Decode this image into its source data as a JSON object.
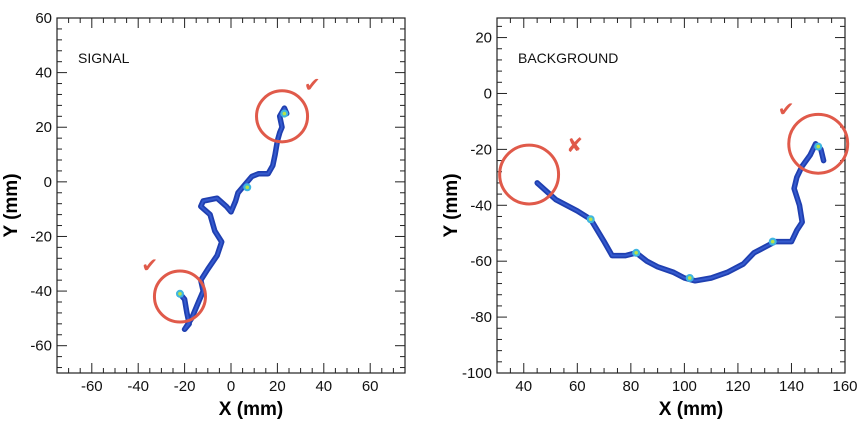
{
  "chart_data": [
    {
      "type": "scatter",
      "label": "SIGNAL",
      "xlabel": "X (mm)",
      "ylabel": "Y (mm)",
      "xlim": [
        -75,
        75
      ],
      "ylim": [
        -70,
        60
      ],
      "xticks": [
        -60,
        -40,
        -20,
        0,
        20,
        40,
        60
      ],
      "yticks": [
        -60,
        -40,
        -20,
        0,
        20,
        40,
        60
      ],
      "track_color": "#1f3fb0",
      "circle_color": "#e05a4a",
      "track": [
        [
          -22,
          -41
        ],
        [
          -20,
          -43
        ],
        [
          -19,
          -48
        ],
        [
          -18,
          -52
        ],
        [
          -20,
          -54
        ],
        [
          -17,
          -50
        ],
        [
          -14,
          -44
        ],
        [
          -12,
          -40
        ],
        [
          -13,
          -36
        ],
        [
          -10,
          -32
        ],
        [
          -6,
          -27
        ],
        [
          -4,
          -22
        ],
        [
          -7,
          -18
        ],
        [
          -9,
          -12
        ],
        [
          -13,
          -9
        ],
        [
          -12,
          -7
        ],
        [
          -6,
          -6
        ],
        [
          -2,
          -9
        ],
        [
          0,
          -11
        ],
        [
          2,
          -7
        ],
        [
          3,
          -4
        ],
        [
          6,
          -1
        ],
        [
          9,
          2
        ],
        [
          12,
          3
        ],
        [
          16,
          3
        ],
        [
          18,
          6
        ],
        [
          19,
          10
        ],
        [
          20,
          15
        ],
        [
          21,
          18
        ],
        [
          22,
          20
        ],
        [
          21,
          24
        ],
        [
          23,
          27
        ],
        [
          24,
          25
        ]
      ],
      "hotspots": [
        [
          23,
          25
        ],
        [
          -22,
          -41
        ],
        [
          7,
          -2
        ]
      ],
      "markers": [
        {
          "kind": "circle",
          "x": 22,
          "y": 24,
          "r": 11,
          "status": "check"
        },
        {
          "kind": "circle",
          "x": -22,
          "y": -42,
          "r": 11,
          "status": "check"
        }
      ],
      "symbols": [
        {
          "x": 35,
          "y": 33,
          "glyph": "✔"
        },
        {
          "x": -35,
          "y": -33,
          "glyph": "✔"
        }
      ]
    },
    {
      "type": "scatter",
      "label": "BACKGROUND",
      "xlabel": "X (mm)",
      "ylabel": "Y (mm)",
      "xlim": [
        30,
        160
      ],
      "ylim": [
        -100,
        27
      ],
      "xticks": [
        40,
        60,
        80,
        100,
        120,
        140,
        160
      ],
      "yticks": [
        -100,
        -80,
        -60,
        -40,
        -20,
        0,
        20
      ],
      "track_color": "#1f3fb0",
      "circle_color": "#e05a4a",
      "track": [
        [
          45,
          -32
        ],
        [
          52,
          -38
        ],
        [
          60,
          -42
        ],
        [
          65,
          -45
        ],
        [
          70,
          -53
        ],
        [
          73,
          -58
        ],
        [
          78,
          -58
        ],
        [
          82,
          -57
        ],
        [
          86,
          -60
        ],
        [
          90,
          -62
        ],
        [
          96,
          -64
        ],
        [
          100,
          -66
        ],
        [
          104,
          -67
        ],
        [
          110,
          -66
        ],
        [
          116,
          -64
        ],
        [
          122,
          -61
        ],
        [
          126,
          -57
        ],
        [
          130,
          -55
        ],
        [
          134,
          -53
        ],
        [
          140,
          -53
        ],
        [
          142,
          -49
        ],
        [
          144,
          -46
        ],
        [
          143,
          -40
        ],
        [
          141,
          -34
        ],
        [
          142,
          -30
        ],
        [
          144,
          -26
        ],
        [
          147,
          -22
        ],
        [
          149,
          -18
        ],
        [
          151,
          -20
        ],
        [
          152,
          -24
        ]
      ],
      "hotspots": [
        [
          150,
          -19
        ],
        [
          65,
          -45
        ],
        [
          82,
          -57
        ],
        [
          102,
          -66
        ],
        [
          133,
          -53
        ]
      ],
      "markers": [
        {
          "kind": "circle",
          "x": 42,
          "y": -29,
          "r": 11,
          "status": "cross"
        },
        {
          "kind": "circle",
          "x": 150,
          "y": -18,
          "r": 11,
          "status": "check"
        }
      ],
      "symbols": [
        {
          "x": 59,
          "y": -21,
          "glyph": "✘"
        },
        {
          "x": 138,
          "y": -8,
          "glyph": "✔"
        }
      ]
    }
  ]
}
